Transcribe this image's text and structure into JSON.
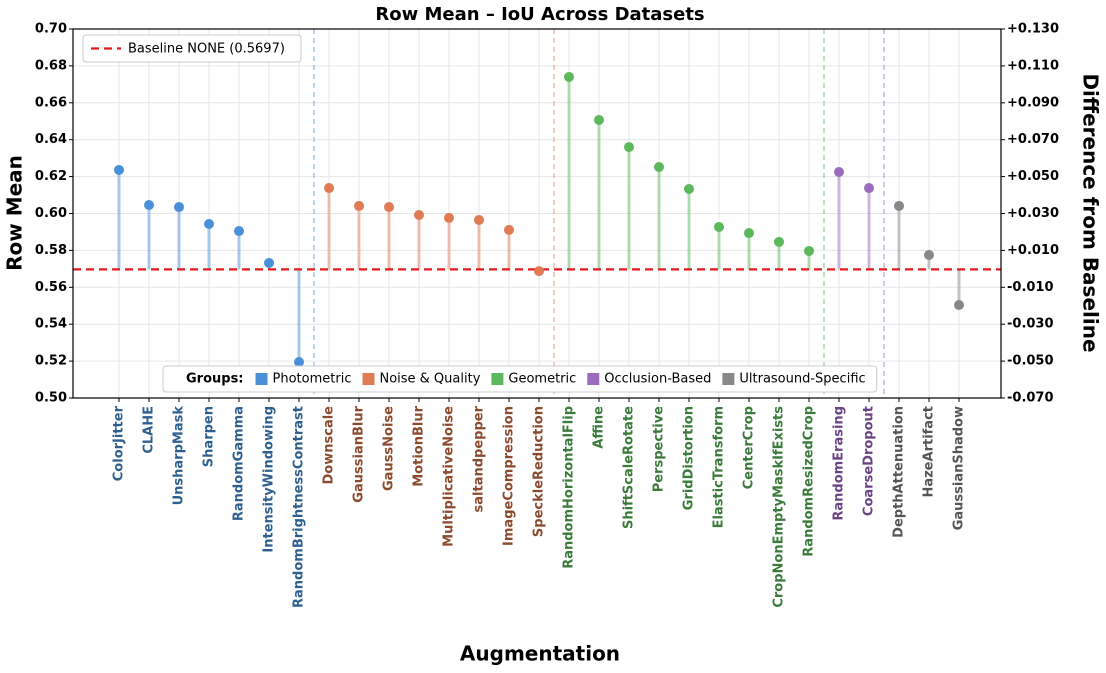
{
  "chart_data": {
    "type": "lollipop",
    "title": "Row Mean – IoU Across Datasets",
    "x_label": "Augmentation",
    "y_label": "Row Mean",
    "y2_label": "Difference from Baseline",
    "ylim": [
      0.5,
      0.7
    ],
    "yticks": [
      {
        "value": 0.5,
        "label": "0.50"
      },
      {
        "value": 0.52,
        "label": "0.52"
      },
      {
        "value": 0.54,
        "label": "0.54"
      },
      {
        "value": 0.56,
        "label": "0.56"
      },
      {
        "value": 0.58,
        "label": "0.58"
      },
      {
        "value": 0.6,
        "label": "0.60"
      },
      {
        "value": 0.62,
        "label": "0.62"
      },
      {
        "value": 0.64,
        "label": "0.64"
      },
      {
        "value": 0.66,
        "label": "0.66"
      },
      {
        "value": 0.68,
        "label": "0.68"
      },
      {
        "value": 0.7,
        "label": "0.70"
      }
    ],
    "y2lim": [
      -0.07,
      0.13
    ],
    "y2ticks": [
      {
        "value": -0.07,
        "label": "-0.070"
      },
      {
        "value": -0.05,
        "label": "-0.050"
      },
      {
        "value": -0.03,
        "label": "-0.030"
      },
      {
        "value": -0.01,
        "label": "-0.010"
      },
      {
        "value": 0.01,
        "label": "+0.010"
      },
      {
        "value": 0.03,
        "label": "+0.030"
      },
      {
        "value": 0.05,
        "label": "+0.050"
      },
      {
        "value": 0.07,
        "label": "+0.070"
      },
      {
        "value": 0.09,
        "label": "+0.090"
      },
      {
        "value": 0.11,
        "label": "+0.110"
      },
      {
        "value": 0.13,
        "label": "+0.130"
      }
    ],
    "grid": true,
    "baseline": {
      "label": "Baseline NONE (0.5697)",
      "value": 0.5697,
      "color": "#e31a1c"
    },
    "legend_title": "Groups:",
    "series": [
      {
        "name": "Photometric",
        "color": "#4a90d9",
        "label_color": "#2e5f8e",
        "categories": [
          "ColorJitter",
          "CLAHE",
          "UnsharpMask",
          "Sharpen",
          "RandomGamma",
          "IntensityWindowing",
          "RandomBrightnessContrast"
        ],
        "values": [
          0.6236,
          0.6046,
          0.6035,
          0.5943,
          0.5905,
          0.5732,
          0.5195
        ]
      },
      {
        "name": "Noise & Quality",
        "color": "#e07b54",
        "label_color": "#8b4a2e",
        "categories": [
          "Downscale",
          "GaussianBlur",
          "GaussNoise",
          "MotionBlur",
          "MultiplicativeNoise",
          "saltandpepper",
          "ImageCompression",
          "SpeckleReduction"
        ],
        "values": [
          0.6138,
          0.6041,
          0.6035,
          0.5992,
          0.5976,
          0.5965,
          0.5911,
          0.5688
        ]
      },
      {
        "name": "Geometric",
        "color": "#5cb85c",
        "label_color": "#3a7a3a",
        "categories": [
          "RandomHorizontalFlip",
          "Affine",
          "ShiftScaleRotate",
          "Perspective",
          "GridDistortion",
          "ElasticTransform",
          "CenterCrop",
          "CropNonEmptyMaskIfExists",
          "RandomResizedCrop"
        ],
        "values": [
          0.674,
          0.6507,
          0.636,
          0.6252,
          0.6133,
          0.5927,
          0.5894,
          0.5846,
          0.5797
        ]
      },
      {
        "name": "Occlusion-Based",
        "color": "#9b6bbf",
        "label_color": "#6a4385",
        "categories": [
          "RandomErasing",
          "CoarseDropout"
        ],
        "values": [
          0.6225,
          0.6138
        ]
      },
      {
        "name": "Ultrasound-Specific",
        "color": "#888888",
        "label_color": "#555555",
        "categories": [
          "DepthAttenuation",
          "HazeArtifact",
          "GaussianShadow"
        ],
        "values": [
          0.6041,
          0.5775,
          0.5504
        ]
      }
    ]
  }
}
